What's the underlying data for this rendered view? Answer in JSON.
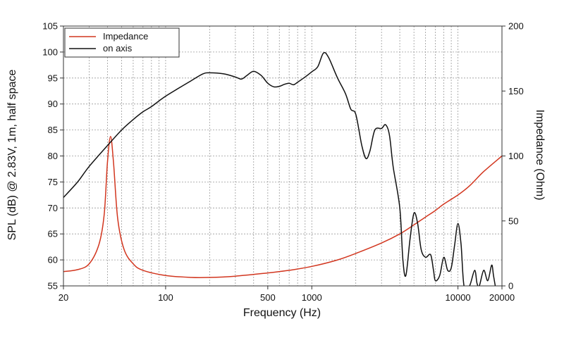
{
  "chart_data": {
    "type": "line",
    "x_scale": "log",
    "xlim": [
      20,
      20000
    ],
    "ylim_left": [
      55,
      105
    ],
    "ylim_right": [
      0,
      200
    ],
    "grid": true,
    "legend_position": "top-left",
    "xlabel": "Frequency (Hz)",
    "ylabel_left": "SPL (dB) @ 2.83V, 1m, half space",
    "ylabel_right": "Impedance (Ohm)",
    "x_ticks": [
      {
        "value": 20,
        "label": "20"
      },
      {
        "value": 100,
        "label": "100"
      },
      {
        "value": 500,
        "label": "500"
      },
      {
        "value": 1000,
        "label": "1000"
      },
      {
        "value": 10000,
        "label": "10000"
      },
      {
        "value": 20000,
        "label": "20000"
      }
    ],
    "y_ticks_left": [
      "55",
      "60",
      "65",
      "70",
      "75",
      "80",
      "85",
      "90",
      "95",
      "100",
      "105"
    ],
    "y_ticks_right": [
      "0",
      "50",
      "100",
      "150",
      "200"
    ],
    "series": [
      {
        "name": "Impedance",
        "axis": "right",
        "color": "#d2361f",
        "points": [
          [
            20,
            11
          ],
          [
            25,
            12.5
          ],
          [
            30,
            17
          ],
          [
            35,
            32
          ],
          [
            38,
            55
          ],
          [
            40,
            95
          ],
          [
            42,
            115
          ],
          [
            44,
            95
          ],
          [
            47,
            52
          ],
          [
            52,
            28
          ],
          [
            60,
            17
          ],
          [
            70,
            12
          ],
          [
            100,
            8
          ],
          [
            150,
            6.5
          ],
          [
            200,
            6.5
          ],
          [
            300,
            7.5
          ],
          [
            500,
            10
          ],
          [
            700,
            12
          ],
          [
            1000,
            15
          ],
          [
            1500,
            20
          ],
          [
            2000,
            25
          ],
          [
            3000,
            33
          ],
          [
            4000,
            40
          ],
          [
            5000,
            47
          ],
          [
            6000,
            53
          ],
          [
            7000,
            58
          ],
          [
            8000,
            63
          ],
          [
            10000,
            70
          ],
          [
            12000,
            77
          ],
          [
            15000,
            88
          ],
          [
            20000,
            100
          ]
        ]
      },
      {
        "name": "on axis",
        "axis": "left",
        "color": "#111111",
        "points": [
          [
            20,
            72
          ],
          [
            25,
            75
          ],
          [
            30,
            78
          ],
          [
            40,
            82
          ],
          [
            50,
            85
          ],
          [
            60,
            87
          ],
          [
            70,
            88.5
          ],
          [
            80,
            89.5
          ],
          [
            100,
            91.5
          ],
          [
            150,
            94.5
          ],
          [
            180,
            95.8
          ],
          [
            200,
            96
          ],
          [
            250,
            95.8
          ],
          [
            300,
            95.2
          ],
          [
            330,
            94.8
          ],
          [
            360,
            95.5
          ],
          [
            400,
            96.3
          ],
          [
            450,
            95.5
          ],
          [
            500,
            94
          ],
          [
            550,
            93.3
          ],
          [
            600,
            93.4
          ],
          [
            650,
            93.8
          ],
          [
            700,
            94
          ],
          [
            750,
            93.7
          ],
          [
            800,
            94.2
          ],
          [
            900,
            95.2
          ],
          [
            1000,
            96.2
          ],
          [
            1100,
            97.2
          ],
          [
            1200,
            99.8
          ],
          [
            1300,
            99
          ],
          [
            1500,
            95
          ],
          [
            1700,
            92
          ],
          [
            1850,
            89
          ],
          [
            2000,
            88
          ],
          [
            2200,
            82
          ],
          [
            2350,
            79.5
          ],
          [
            2500,
            81
          ],
          [
            2700,
            85
          ],
          [
            3000,
            85.3
          ],
          [
            3200,
            86
          ],
          [
            3400,
            84
          ],
          [
            3600,
            78
          ],
          [
            4000,
            70
          ],
          [
            4200,
            60
          ],
          [
            4400,
            57
          ],
          [
            4700,
            64
          ],
          [
            5000,
            69
          ],
          [
            5300,
            67
          ],
          [
            5600,
            62
          ],
          [
            6000,
            60.5
          ],
          [
            6500,
            61
          ],
          [
            6800,
            58
          ],
          [
            7000,
            56
          ],
          [
            7500,
            57
          ],
          [
            8000,
            60.5
          ],
          [
            8500,
            58
          ],
          [
            9000,
            58.5
          ],
          [
            9500,
            63
          ],
          [
            10000,
            67
          ],
          [
            10500,
            63
          ],
          [
            11000,
            55
          ],
          [
            12000,
            55
          ],
          [
            13000,
            58
          ],
          [
            13500,
            55.5
          ],
          [
            14000,
            55
          ],
          [
            15000,
            58
          ],
          [
            16000,
            56
          ],
          [
            17000,
            59
          ],
          [
            17500,
            57
          ],
          [
            18000,
            55
          ]
        ]
      }
    ]
  }
}
